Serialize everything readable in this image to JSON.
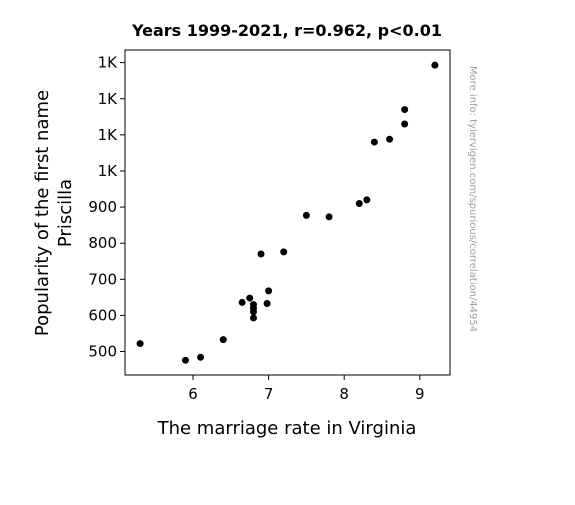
{
  "chart_data": {
    "type": "scatter",
    "title": "Years 1999-2021, r=0.962, p<0.01",
    "xlabel": "The marriage rate in Virginia",
    "ylabel_lines": [
      "Popularity of the first name",
      "Priscilla"
    ],
    "xlim": [
      5.1,
      9.4
    ],
    "ylim": [
      435,
      1335
    ],
    "x_ticks": [
      {
        "value": 6,
        "label": "6"
      },
      {
        "value": 7,
        "label": "7"
      },
      {
        "value": 8,
        "label": "8"
      },
      {
        "value": 9,
        "label": "9"
      }
    ],
    "y_ticks": [
      {
        "value": 500,
        "label": "500"
      },
      {
        "value": 600,
        "label": "600"
      },
      {
        "value": 700,
        "label": "700"
      },
      {
        "value": 800,
        "label": "800"
      },
      {
        "value": 900,
        "label": "900"
      },
      {
        "value": 1000,
        "label": "1K"
      },
      {
        "value": 1100,
        "label": "1K"
      },
      {
        "value": 1200,
        "label": "1K"
      },
      {
        "value": 1300,
        "label": "1K"
      }
    ],
    "points": [
      {
        "x": 9.2,
        "y": 1293
      },
      {
        "x": 8.8,
        "y": 1170
      },
      {
        "x": 8.8,
        "y": 1130
      },
      {
        "x": 8.6,
        "y": 1088
      },
      {
        "x": 8.4,
        "y": 1080
      },
      {
        "x": 8.3,
        "y": 920
      },
      {
        "x": 8.2,
        "y": 910
      },
      {
        "x": 7.5,
        "y": 877
      },
      {
        "x": 7.8,
        "y": 873
      },
      {
        "x": 7.2,
        "y": 776
      },
      {
        "x": 6.9,
        "y": 770
      },
      {
        "x": 7.0,
        "y": 668
      },
      {
        "x": 6.75,
        "y": 648
      },
      {
        "x": 6.65,
        "y": 636
      },
      {
        "x": 6.8,
        "y": 630
      },
      {
        "x": 6.98,
        "y": 633
      },
      {
        "x": 6.8,
        "y": 620
      },
      {
        "x": 6.8,
        "y": 610
      },
      {
        "x": 6.8,
        "y": 593
      },
      {
        "x": 6.4,
        "y": 533
      },
      {
        "x": 5.3,
        "y": 522
      },
      {
        "x": 6.1,
        "y": 484
      },
      {
        "x": 5.9,
        "y": 476
      }
    ],
    "marker_color": "#000000",
    "grid": false,
    "legend": "none"
  },
  "watermark": "More info: tylervigen.com/spurious/correlation/44954"
}
